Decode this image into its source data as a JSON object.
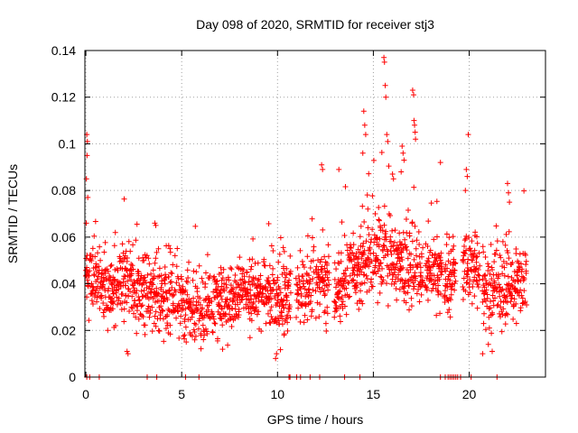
{
  "chart_data": {
    "type": "scatter",
    "title": "Day 098 of 2020, SRMTID for receiver stj3",
    "xlabel": "GPS time / hours",
    "ylabel": "SRMTID / TECUs",
    "xlim": [
      -0.05,
      23.98
    ],
    "ylim": [
      0,
      0.14
    ],
    "xticks": [
      0,
      5,
      10,
      15,
      20
    ],
    "xtick_labels": [
      "0",
      "5",
      "10",
      "15",
      "20"
    ],
    "yticks": [
      0,
      0.02,
      0.04,
      0.06,
      0.08,
      0.1,
      0.12,
      0.14
    ],
    "ytick_labels": [
      "0",
      "0.02",
      "0.04",
      "0.06",
      "0.08",
      "0.1",
      "0.12",
      "0.14"
    ],
    "grid": true,
    "marker": "+",
    "color": "#ff0000",
    "series": [
      {
        "name": "SRMTID",
        "profile": [
          {
            "x": 0.0,
            "y": 0.042
          },
          {
            "x": 0.5,
            "y": 0.04
          },
          {
            "x": 1.0,
            "y": 0.036
          },
          {
            "x": 1.5,
            "y": 0.038
          },
          {
            "x": 2.0,
            "y": 0.04
          },
          {
            "x": 2.5,
            "y": 0.039
          },
          {
            "x": 3.0,
            "y": 0.038
          },
          {
            "x": 3.5,
            "y": 0.036
          },
          {
            "x": 4.0,
            "y": 0.034
          },
          {
            "x": 4.5,
            "y": 0.032
          },
          {
            "x": 5.0,
            "y": 0.031
          },
          {
            "x": 5.5,
            "y": 0.03
          },
          {
            "x": 6.0,
            "y": 0.031
          },
          {
            "x": 6.5,
            "y": 0.032
          },
          {
            "x": 7.0,
            "y": 0.033
          },
          {
            "x": 7.5,
            "y": 0.034
          },
          {
            "x": 8.0,
            "y": 0.035
          },
          {
            "x": 8.5,
            "y": 0.036
          },
          {
            "x": 9.0,
            "y": 0.037
          },
          {
            "x": 9.5,
            "y": 0.036
          },
          {
            "x": 10.0,
            "y": 0.035
          },
          {
            "x": 10.5,
            "y": 0.035
          },
          {
            "x": 11.0,
            "y": 0.036
          },
          {
            "x": 11.5,
            "y": 0.037
          },
          {
            "x": 12.0,
            "y": 0.042
          },
          {
            "x": 12.5,
            "y": 0.041
          },
          {
            "x": 13.0,
            "y": 0.038
          },
          {
            "x": 13.5,
            "y": 0.042
          },
          {
            "x": 14.0,
            "y": 0.046
          },
          {
            "x": 14.5,
            "y": 0.05
          },
          {
            "x": 15.0,
            "y": 0.052
          },
          {
            "x": 15.5,
            "y": 0.054
          },
          {
            "x": 16.0,
            "y": 0.05
          },
          {
            "x": 16.5,
            "y": 0.047
          },
          {
            "x": 17.0,
            "y": 0.047
          },
          {
            "x": 17.5,
            "y": 0.046
          },
          {
            "x": 18.0,
            "y": 0.045
          },
          {
            "x": 18.5,
            "y": 0.044
          },
          {
            "x": 19.0,
            "y": 0.043
          },
          {
            "x": 19.5,
            "y": 0.046
          },
          {
            "x": 20.0,
            "y": 0.048
          },
          {
            "x": 20.5,
            "y": 0.043
          },
          {
            "x": 21.0,
            "y": 0.038
          },
          {
            "x": 21.5,
            "y": 0.036
          },
          {
            "x": 22.0,
            "y": 0.038
          },
          {
            "x": 22.5,
            "y": 0.04
          },
          {
            "x": 23.0,
            "y": 0.04
          }
        ],
        "spread": 0.011,
        "gaps": [
          [
            6.5,
            6.56
          ],
          [
            10.7,
            10.95
          ],
          [
            11.9,
            11.98
          ],
          [
            12.7,
            12.95
          ],
          [
            17.6,
            17.7
          ],
          [
            18.6,
            18.7
          ],
          [
            19.3,
            19.65
          ],
          [
            20.55,
            20.68
          ]
        ],
        "outliers": [
          {
            "x": 0.05,
            "y": 0.104
          },
          {
            "x": 0.08,
            "y": 0.101
          },
          {
            "x": 0.03,
            "y": 0.085
          },
          {
            "x": 0.06,
            "y": 0.095
          },
          {
            "x": 0.1,
            "y": 0.077
          },
          {
            "x": 0.02,
            "y": 0.066
          },
          {
            "x": 3.6,
            "y": 0.066
          },
          {
            "x": 3.65,
            "y": 0.065
          },
          {
            "x": 2.15,
            "y": 0.011
          },
          {
            "x": 2.2,
            "y": 0.01
          },
          {
            "x": 9.9,
            "y": 0.008
          },
          {
            "x": 9.95,
            "y": 0.01
          },
          {
            "x": 12.3,
            "y": 0.091
          },
          {
            "x": 12.35,
            "y": 0.089
          },
          {
            "x": 13.2,
            "y": 0.089
          },
          {
            "x": 14.5,
            "y": 0.114
          },
          {
            "x": 14.55,
            "y": 0.108
          },
          {
            "x": 14.6,
            "y": 0.104
          },
          {
            "x": 14.45,
            "y": 0.096
          },
          {
            "x": 15.55,
            "y": 0.137
          },
          {
            "x": 15.58,
            "y": 0.135
          },
          {
            "x": 15.62,
            "y": 0.125
          },
          {
            "x": 15.65,
            "y": 0.12
          },
          {
            "x": 15.7,
            "y": 0.104
          },
          {
            "x": 15.75,
            "y": 0.101
          },
          {
            "x": 16.0,
            "y": 0.087
          },
          {
            "x": 16.05,
            "y": 0.085
          },
          {
            "x": 16.5,
            "y": 0.099
          },
          {
            "x": 16.55,
            "y": 0.096
          },
          {
            "x": 16.6,
            "y": 0.093
          },
          {
            "x": 16.45,
            "y": 0.088
          },
          {
            "x": 17.05,
            "y": 0.123
          },
          {
            "x": 17.1,
            "y": 0.121
          },
          {
            "x": 17.12,
            "y": 0.11
          },
          {
            "x": 17.15,
            "y": 0.108
          },
          {
            "x": 17.18,
            "y": 0.105
          },
          {
            "x": 17.2,
            "y": 0.102
          },
          {
            "x": 18.5,
            "y": 0.092
          },
          {
            "x": 19.95,
            "y": 0.104
          },
          {
            "x": 19.85,
            "y": 0.089
          },
          {
            "x": 19.9,
            "y": 0.086
          },
          {
            "x": 19.8,
            "y": 0.08
          },
          {
            "x": 22.0,
            "y": 0.083
          },
          {
            "x": 22.05,
            "y": 0.079
          },
          {
            "x": 22.1,
            "y": 0.075
          },
          {
            "x": 20.7,
            "y": 0.01
          },
          {
            "x": 21.2,
            "y": 0.011
          },
          {
            "x": 21.0,
            "y": 0.014
          }
        ],
        "zero_points": [
          0.05,
          0.2,
          0.7,
          3.2,
          3.7,
          5.2,
          5.9,
          10.6,
          10.65,
          11.0,
          11.2,
          11.7,
          12.2,
          13.5,
          14.3,
          18.5,
          18.75,
          18.9,
          19.0,
          19.1,
          19.2,
          19.3,
          19.4,
          19.55,
          20.1,
          21.45
        ]
      }
    ]
  }
}
